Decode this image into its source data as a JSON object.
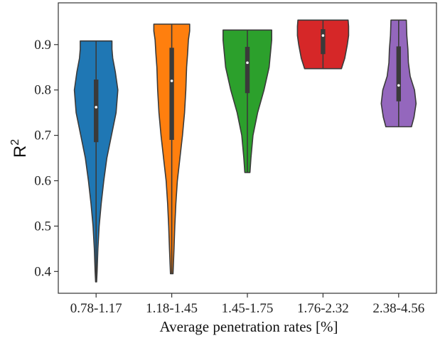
{
  "chart_data": {
    "type": "violin",
    "title": "",
    "xlabel": "Average penetration rates [%]",
    "ylabel": "R",
    "ylabel_superscript": "2",
    "ylim": [
      0.352,
      0.992
    ],
    "yticks": [
      "0.4",
      "0.5",
      "0.6",
      "0.7",
      "0.8",
      "0.9"
    ],
    "ytick_values": [
      0.4,
      0.5,
      0.6,
      0.7,
      0.8,
      0.9
    ],
    "grid": false,
    "categories": [
      "0.78-1.17",
      "1.18-1.45",
      "1.45-1.75",
      "1.76-2.32",
      "2.38-4.56"
    ],
    "series": [
      {
        "color": "#1f77b4",
        "min": 0.377,
        "q1": 0.685,
        "median": 0.762,
        "q3": 0.823,
        "max": 0.908,
        "profile": [
          [
            0.377,
            0.02
          ],
          [
            0.4,
            0.04
          ],
          [
            0.45,
            0.07
          ],
          [
            0.5,
            0.12
          ],
          [
            0.55,
            0.2
          ],
          [
            0.6,
            0.3
          ],
          [
            0.65,
            0.42
          ],
          [
            0.7,
            0.6
          ],
          [
            0.75,
            0.78
          ],
          [
            0.8,
            0.85
          ],
          [
            0.84,
            0.75
          ],
          [
            0.87,
            0.65
          ],
          [
            0.89,
            0.62
          ],
          [
            0.908,
            0.62
          ]
        ]
      },
      {
        "color": "#ff7f0e",
        "min": 0.395,
        "q1": 0.69,
        "median": 0.82,
        "q3": 0.893,
        "max": 0.945,
        "profile": [
          [
            0.395,
            0.05
          ],
          [
            0.45,
            0.09
          ],
          [
            0.5,
            0.12
          ],
          [
            0.55,
            0.16
          ],
          [
            0.6,
            0.22
          ],
          [
            0.65,
            0.32
          ],
          [
            0.7,
            0.42
          ],
          [
            0.75,
            0.5
          ],
          [
            0.8,
            0.55
          ],
          [
            0.85,
            0.58
          ],
          [
            0.88,
            0.62
          ],
          [
            0.91,
            0.65
          ],
          [
            0.93,
            0.7
          ],
          [
            0.945,
            0.7
          ]
        ]
      },
      {
        "color": "#2ca02c",
        "min": 0.618,
        "q1": 0.793,
        "median": 0.86,
        "q3": 0.895,
        "max": 0.932,
        "profile": [
          [
            0.618,
            0.1
          ],
          [
            0.65,
            0.14
          ],
          [
            0.7,
            0.22
          ],
          [
            0.75,
            0.4
          ],
          [
            0.8,
            0.65
          ],
          [
            0.85,
            0.85
          ],
          [
            0.88,
            0.9
          ],
          [
            0.91,
            0.95
          ],
          [
            0.932,
            0.95
          ]
        ]
      },
      {
        "color": "#d62728",
        "min": 0.847,
        "q1": 0.879,
        "median": 0.92,
        "q3": 0.934,
        "max": 0.954,
        "profile": [
          [
            0.847,
            0.72
          ],
          [
            0.87,
            0.85
          ],
          [
            0.9,
            0.95
          ],
          [
            0.92,
            1.0
          ],
          [
            0.94,
            1.0
          ],
          [
            0.954,
            0.98
          ]
        ]
      },
      {
        "color": "#9467bd",
        "min": 0.719,
        "q1": 0.775,
        "median": 0.81,
        "q3": 0.896,
        "max": 0.954,
        "profile": [
          [
            0.719,
            0.5
          ],
          [
            0.74,
            0.6
          ],
          [
            0.77,
            0.68
          ],
          [
            0.8,
            0.62
          ],
          [
            0.83,
            0.45
          ],
          [
            0.86,
            0.38
          ],
          [
            0.89,
            0.36
          ],
          [
            0.92,
            0.32
          ],
          [
            0.954,
            0.3
          ]
        ]
      }
    ]
  }
}
